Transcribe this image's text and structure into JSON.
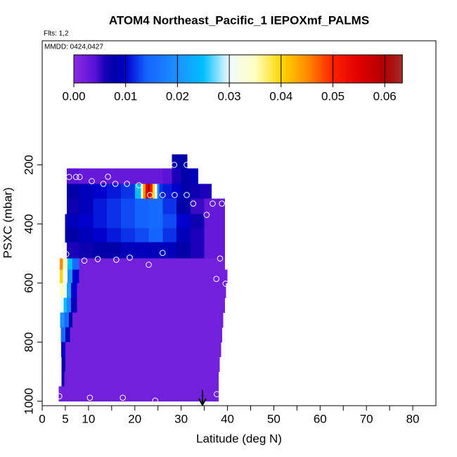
{
  "chart_data": {
    "type": "curtain",
    "title": "ATOM4 Northeast_Pacific_1 IEPOXmf_PALMS",
    "subtitle": "Flts: 1,2",
    "annotation": "MMDD: 0424,0427",
    "xlabel": "Latitude (deg N)",
    "ylabel": "PSXC (mbar)",
    "xlim": [
      0,
      85
    ],
    "xticks": [
      0,
      5,
      10,
      20,
      30,
      40,
      50,
      60,
      70,
      80
    ],
    "xminor_ticks": [
      15,
      25,
      35,
      45,
      55,
      65,
      75
    ],
    "ylim": [
      1015,
      -220
    ],
    "yticks": [
      200,
      400,
      600,
      800,
      1000
    ],
    "colorbar": {
      "lim": [
        0,
        0.0634
      ],
      "ticks": [
        0.0,
        0.01,
        0.02,
        0.03,
        0.04,
        0.05,
        0.06
      ],
      "tick_labels": [
        "0.00",
        "0.01",
        "0.02",
        "0.03",
        "0.04",
        "0.05",
        "0.06"
      ],
      "stops": [
        {
          "value": 0,
          "color": "#8a2be2"
        },
        {
          "value": 0.004,
          "color": "#5a14d6"
        },
        {
          "value": 0.006,
          "color": "#1a00b8"
        },
        {
          "value": 0.008,
          "color": "#0000a8"
        },
        {
          "value": 0.01,
          "color": "#0000cd"
        },
        {
          "value": 0.014,
          "color": "#1464ff"
        },
        {
          "value": 0.02,
          "color": "#1e90ff"
        },
        {
          "value": 0.025,
          "color": "#00bfff"
        },
        {
          "value": 0.03,
          "color": "#f0faff"
        },
        {
          "value": 0.035,
          "color": "#ffffc0"
        },
        {
          "value": 0.04,
          "color": "#ffd700"
        },
        {
          "value": 0.045,
          "color": "#ff8c00"
        },
        {
          "value": 0.05,
          "color": "#ff2000"
        },
        {
          "value": 0.055,
          "color": "#e00000"
        },
        {
          "value": 0.06,
          "color": "#b00000"
        },
        {
          "value": 0.0634,
          "color": "#a52a2a"
        }
      ]
    },
    "rows": [
      {
        "p": [
          164,
          212
        ],
        "lat_edges": [
          28,
          31.3
        ],
        "values": [
          0.008
        ]
      },
      {
        "p": [
          212,
          264
        ],
        "lat_edges": [
          5.3,
          8,
          11,
          14,
          17,
          20,
          23,
          26,
          28,
          30,
          32,
          33.6
        ],
        "values": [
          0.004,
          0.003,
          0.003,
          0.003,
          0.003,
          0.003,
          0.003,
          0.004,
          0.006,
          0.008,
          0.009
        ]
      },
      {
        "p": [
          264,
          314
        ],
        "lat_edges": [
          5.3,
          8,
          11,
          14,
          17,
          20,
          21.3,
          21.8,
          22.3,
          22.8,
          23.3,
          23.8,
          24.3,
          24.8,
          25.3,
          26,
          28,
          30,
          32,
          34,
          36.5
        ],
        "values": [
          0.008,
          0.009,
          0.01,
          0.011,
          0.012,
          0.025,
          0.035,
          0.045,
          0.055,
          0.06,
          0.05,
          0.04,
          0.03,
          0.02,
          0.012,
          0.011,
          0.01,
          0.008,
          0.007,
          0.006
        ]
      },
      {
        "p": [
          314,
          366
        ],
        "lat_edges": [
          5.3,
          8,
          11,
          14,
          17,
          20,
          23,
          26,
          29,
          32,
          35,
          39.4
        ],
        "values": [
          0.007,
          0.009,
          0.011,
          0.012,
          0.013,
          0.014,
          0.015,
          0.012,
          0.008,
          0.005,
          0.003
        ]
      },
      {
        "p": [
          366,
          414
        ],
        "lat_edges": [
          4.9,
          8,
          11,
          14,
          17,
          20,
          23,
          26,
          29,
          32,
          35,
          39.4
        ],
        "values": [
          0.009,
          0.01,
          0.011,
          0.012,
          0.013,
          0.014,
          0.015,
          0.013,
          0.01,
          0.007,
          0.003
        ]
      },
      {
        "p": [
          414,
          462
        ],
        "lat_edges": [
          4.9,
          8,
          11,
          14,
          17,
          20,
          23,
          26,
          29,
          32,
          35,
          39.4
        ],
        "values": [
          0.008,
          0.009,
          0.01,
          0.011,
          0.012,
          0.013,
          0.014,
          0.012,
          0.009,
          0.006,
          0.003
        ]
      },
      {
        "p": [
          462,
          517
        ],
        "lat_edges": [
          5.3,
          8,
          11,
          14,
          17,
          20,
          23,
          26,
          29,
          32,
          35,
          39.4
        ],
        "values": [
          0.006,
          0.007,
          0.008,
          0.008,
          0.009,
          0.009,
          0.009,
          0.009,
          0.008,
          0.006,
          0.003
        ]
      },
      {
        "p": [
          517,
          555
        ],
        "lat_edges": [
          3.8,
          4.5,
          5.5,
          6.5,
          8,
          39.4
        ],
        "values": [
          0.045,
          0.035,
          0.025,
          0.015,
          0.002
        ]
      },
      {
        "p": [
          555,
          600
        ],
        "lat_edges": [
          3.8,
          4.5,
          5.5,
          6.5,
          8,
          39.9
        ],
        "values": [
          0.04,
          0.03,
          0.02,
          0.01,
          0.002
        ]
      },
      {
        "p": [
          600,
          650
        ],
        "lat_edges": [
          3.9,
          4.6,
          5.3,
          6.2,
          7.5,
          39.6
        ],
        "values": [
          0.035,
          0.03,
          0.022,
          0.01,
          0.002
        ]
      },
      {
        "p": [
          650,
          700
        ],
        "lat_edges": [
          3.9,
          4.6,
          5.3,
          6.2,
          7.5,
          39.4
        ],
        "values": [
          0.03,
          0.025,
          0.018,
          0.009,
          0.002
        ]
      },
      {
        "p": [
          700,
          750
        ],
        "lat_edges": [
          3.9,
          4.8,
          5.8,
          6.5,
          39
        ],
        "values": [
          0.02,
          0.015,
          0.008,
          0.002
        ]
      },
      {
        "p": [
          750,
          800
        ],
        "lat_edges": [
          4,
          5,
          6,
          38.8
        ],
        "values": [
          0.015,
          0.009,
          0.002
        ]
      },
      {
        "p": [
          800,
          850
        ],
        "lat_edges": [
          4.1,
          5,
          38.6
        ],
        "values": [
          0.01,
          0.002
        ]
      },
      {
        "p": [
          850,
          900
        ],
        "lat_edges": [
          4.2,
          5,
          38.3
        ],
        "values": [
          0.008,
          0.002
        ]
      },
      {
        "p": [
          900,
          950
        ],
        "lat_edges": [
          4.2,
          4.8,
          38
        ],
        "values": [
          0.007,
          0.002
        ]
      },
      {
        "p": [
          950,
          1000
        ],
        "lat_edges": [
          3.6,
          38
        ],
        "values": [
          0.002
        ]
      }
    ],
    "points": {
      "lat": [
        5.8,
        7.3,
        8.1,
        10.7,
        13.2,
        14.2,
        15.8,
        18.3,
        20.9,
        23.3,
        26,
        28.6,
        31.2,
        28.5,
        31.2,
        32.6,
        35.5,
        36.8,
        38.8,
        26,
        5.2,
        9.1,
        12,
        16,
        18.9,
        23,
        38.4,
        37.6,
        39.6,
        3.7,
        10.3,
        17.4,
        24.4,
        37.7
      ],
      "p": [
        241,
        241,
        241,
        255,
        264,
        240,
        264,
        264,
        269,
        302,
        302,
        302,
        302,
        200,
        200,
        331,
        369,
        331,
        331,
        498,
        502,
        524,
        519,
        521,
        514,
        538,
        517,
        586,
        602,
        983,
        988,
        988,
        998,
        976
      ],
      "color": "#ffffff"
    },
    "arrow_lat": 34.6
  }
}
